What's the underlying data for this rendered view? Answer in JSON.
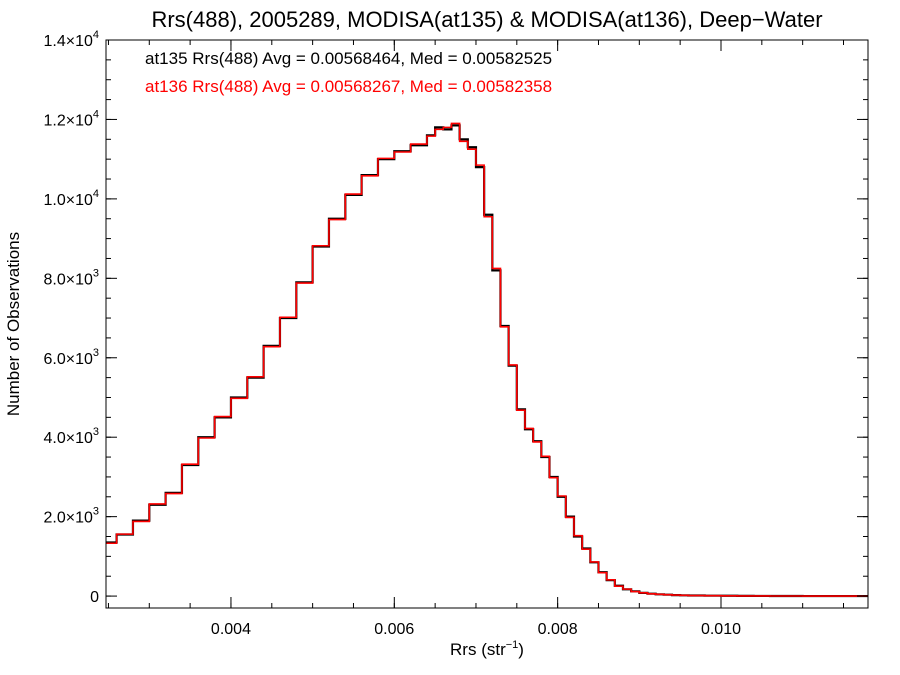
{
  "chart_data": {
    "type": "line",
    "title": "Rrs(488), 2005289, MODISA(at135) & MODISA(at136), Deep−Water",
    "xlabel": {
      "main": "Rrs (str",
      "sup": "−1",
      "end": ")"
    },
    "ylabel": "Number of Observations",
    "xlim": [
      0.00247,
      0.0118
    ],
    "ylim": [
      -300,
      14000
    ],
    "x_ticks": [
      {
        "value": 0.004,
        "label": "0.004"
      },
      {
        "value": 0.006,
        "label": "0.006"
      },
      {
        "value": 0.008,
        "label": "0.008"
      },
      {
        "value": 0.01,
        "label": "0.010"
      }
    ],
    "x_minor_step": 0.0005,
    "y_ticks": [
      {
        "value": 0,
        "label": "0",
        "exp": ""
      },
      {
        "value": 2000,
        "label": "2.0×10",
        "exp": "3"
      },
      {
        "value": 4000,
        "label": "4.0×10",
        "exp": "3"
      },
      {
        "value": 6000,
        "label": "6.0×10",
        "exp": "3"
      },
      {
        "value": 8000,
        "label": "8.0×10",
        "exp": "3"
      },
      {
        "value": 10000,
        "label": "1.0×10",
        "exp": "4"
      },
      {
        "value": 12000,
        "label": "1.2×10",
        "exp": "4"
      },
      {
        "value": 14000,
        "label": "1.4×10",
        "exp": "4"
      }
    ],
    "y_minor_step": 500,
    "series": [
      {
        "name": "at135 Rrs(488) Avg = 0.00568464, Med = 0.00582525",
        "color": "#000000",
        "x": [
          0.00247,
          0.0026,
          0.0028,
          0.003,
          0.0032,
          0.0034,
          0.0036,
          0.0038,
          0.004,
          0.0042,
          0.0044,
          0.0046,
          0.0048,
          0.005,
          0.0052,
          0.0054,
          0.0056,
          0.0058,
          0.006,
          0.0062,
          0.0064,
          0.0065,
          0.0066,
          0.0067,
          0.0068,
          0.0069,
          0.007,
          0.0071,
          0.0072,
          0.0073,
          0.0074,
          0.0075,
          0.0076,
          0.0077,
          0.0078,
          0.0079,
          0.008,
          0.0081,
          0.0082,
          0.0083,
          0.0084,
          0.0085,
          0.0086,
          0.0087,
          0.0088,
          0.0089,
          0.009,
          0.0091,
          0.0092,
          0.0093,
          0.0094,
          0.0095,
          0.0096,
          0.0098,
          0.01,
          0.0102,
          0.0104,
          0.0106,
          0.0108,
          0.011,
          0.0112,
          0.0114,
          0.0116,
          0.0118
        ],
        "values": [
          1350,
          1550,
          1900,
          2300,
          2600,
          3300,
          4000,
          4500,
          5000,
          5500,
          6300,
          7000,
          7900,
          8800,
          9500,
          10100,
          10600,
          11000,
          11200,
          11350,
          11600,
          11800,
          11750,
          11850,
          11500,
          11300,
          10800,
          9600,
          8200,
          6800,
          5800,
          4700,
          4200,
          3900,
          3500,
          3000,
          2500,
          2000,
          1500,
          1200,
          850,
          600,
          400,
          260,
          170,
          120,
          80,
          60,
          45,
          35,
          25,
          20,
          15,
          10,
          8,
          5,
          3,
          2,
          2,
          1,
          1,
          1,
          0,
          0
        ]
      },
      {
        "name": "at136 Rrs(488) Avg = 0.00568267, Med = 0.00582358",
        "color": "#ff0000",
        "x": [
          0.00247,
          0.0026,
          0.0028,
          0.003,
          0.0032,
          0.0034,
          0.0036,
          0.0038,
          0.004,
          0.0042,
          0.0044,
          0.0046,
          0.0048,
          0.005,
          0.0052,
          0.0054,
          0.0056,
          0.0058,
          0.006,
          0.0062,
          0.0064,
          0.0065,
          0.0066,
          0.0067,
          0.0068,
          0.0069,
          0.007,
          0.0071,
          0.0072,
          0.0073,
          0.0074,
          0.0075,
          0.0076,
          0.0077,
          0.0078,
          0.0079,
          0.008,
          0.0081,
          0.0082,
          0.0083,
          0.0084,
          0.0085,
          0.0086,
          0.0087,
          0.0088,
          0.0089,
          0.009,
          0.0091,
          0.0092,
          0.0093,
          0.0094,
          0.0095,
          0.0096,
          0.0098,
          0.01,
          0.0102,
          0.0104,
          0.0106,
          0.0108,
          0.011,
          0.0112,
          0.0114,
          0.0116,
          0.0118
        ],
        "values": [
          1330,
          1560,
          1880,
          2320,
          2580,
          3320,
          3980,
          4520,
          4980,
          5520,
          6280,
          7020,
          7880,
          8820,
          9480,
          10120,
          10580,
          11020,
          11180,
          11380,
          11580,
          11750,
          11800,
          11900,
          11450,
          11250,
          10850,
          9550,
          8250,
          6780,
          5820,
          4680,
          4220,
          3880,
          3520,
          2980,
          2520,
          1980,
          1520,
          1180,
          860,
          590,
          410,
          250,
          175,
          115,
          82,
          58,
          44,
          34,
          26,
          19,
          14,
          10,
          7,
          5,
          3,
          2,
          2,
          1,
          1,
          1,
          0,
          0
        ]
      }
    ]
  }
}
